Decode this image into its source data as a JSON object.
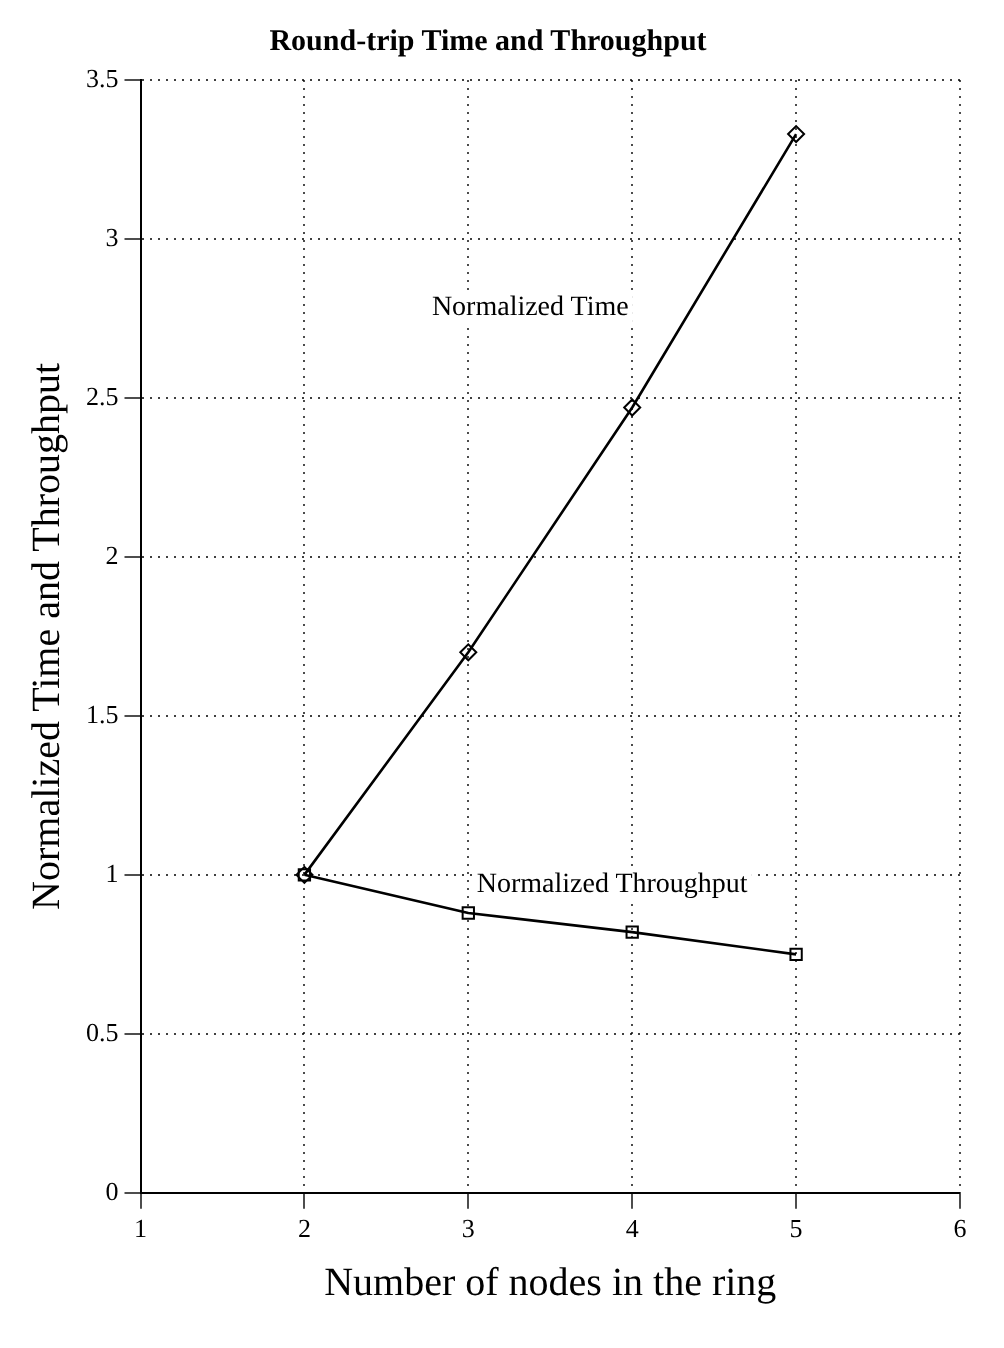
{
  "chart_data": {
    "type": "line",
    "title": "Round-trip Time and Throughput",
    "xlabel": "Number of nodes in the ring",
    "ylabel": "Normalized Time and Throughput",
    "x": [
      2,
      3,
      4,
      5
    ],
    "series": [
      {
        "name": "Normalized Time",
        "color": "#000000",
        "marker": "diamond",
        "values": [
          1,
          1.7,
          2.47,
          3.33
        ]
      },
      {
        "name": "Normalized Throughput",
        "color": "#000000",
        "marker": "square",
        "values": [
          1,
          0.88,
          0.82,
          0.75
        ]
      }
    ],
    "xlim": [
      1,
      6
    ],
    "xticks": [
      1,
      2,
      3,
      4,
      5,
      6
    ],
    "ylim": [
      0,
      3.5
    ],
    "yticks": [
      0,
      0.5,
      1,
      1.5,
      2,
      2.5,
      3,
      3.5
    ],
    "grid": true,
    "legend": false,
    "line_style": "solid"
  }
}
